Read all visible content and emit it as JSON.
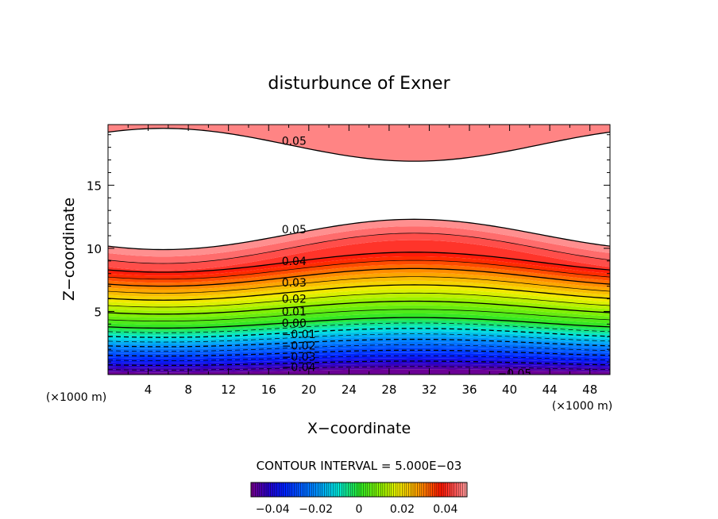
{
  "chart_data": {
    "type": "contour",
    "title": "disturbunce of Exner",
    "xlabel": "X−coordinate",
    "ylabel": "Z−coordinate",
    "x_unit_left": "(×1000 m)",
    "x_unit_right": "(×1000 m)",
    "xlim": [
      0,
      50
    ],
    "ylim": [
      0,
      19.8
    ],
    "x_ticks": [
      "4",
      "8",
      "12",
      "16",
      "20",
      "24",
      "28",
      "32",
      "36",
      "40",
      "44",
      "48"
    ],
    "x_tick_values": [
      4,
      8,
      12,
      16,
      20,
      24,
      28,
      32,
      36,
      40,
      44,
      48
    ],
    "y_ticks": [
      "5",
      "10",
      "15"
    ],
    "y_tick_values": [
      5,
      10,
      15
    ],
    "contour_interval_text": "CONTOUR INTERVAL = 5.000E−03",
    "contour_levels": [
      -0.05,
      -0.045,
      -0.04,
      -0.035,
      -0.03,
      -0.025,
      -0.02,
      -0.015,
      -0.01,
      -0.005,
      0,
      0.005,
      0.01,
      0.015,
      0.02,
      0.025,
      0.03,
      0.035,
      0.04,
      0.045,
      0.05
    ],
    "contour_labels": [
      {
        "text": "0.05",
        "x": 17.3,
        "y": 18.5
      },
      {
        "text": "0.05",
        "x": 17.3,
        "y": 11.5
      },
      {
        "text": "0.04",
        "x": 17.3,
        "y": 9.0
      },
      {
        "text": "0.03",
        "x": 17.3,
        "y": 7.3
      },
      {
        "text": "0.02",
        "x": 17.3,
        "y": 6.0
      },
      {
        "text": "0.01",
        "x": 17.3,
        "y": 5.0
      },
      {
        "text": "0.00",
        "x": 17.3,
        "y": 4.1
      },
      {
        "text": "−0.01",
        "x": 17.3,
        "y": 3.2
      },
      {
        "text": "−0.02",
        "x": 17.3,
        "y": 2.3
      },
      {
        "text": "−0.03",
        "x": 17.3,
        "y": 1.4
      },
      {
        "text": "−0.04",
        "x": 17.3,
        "y": 0.6
      },
      {
        "text": "−0.05",
        "x": 38.8,
        "y": 0.1
      }
    ],
    "colorbar": {
      "ticks": [
        "−0.04",
        "−0.02",
        "0",
        "0.02",
        "0.04"
      ],
      "tick_values": [
        -0.04,
        -0.02,
        0,
        0.02,
        0.04
      ],
      "range": [
        -0.05,
        0.05
      ]
    }
  }
}
